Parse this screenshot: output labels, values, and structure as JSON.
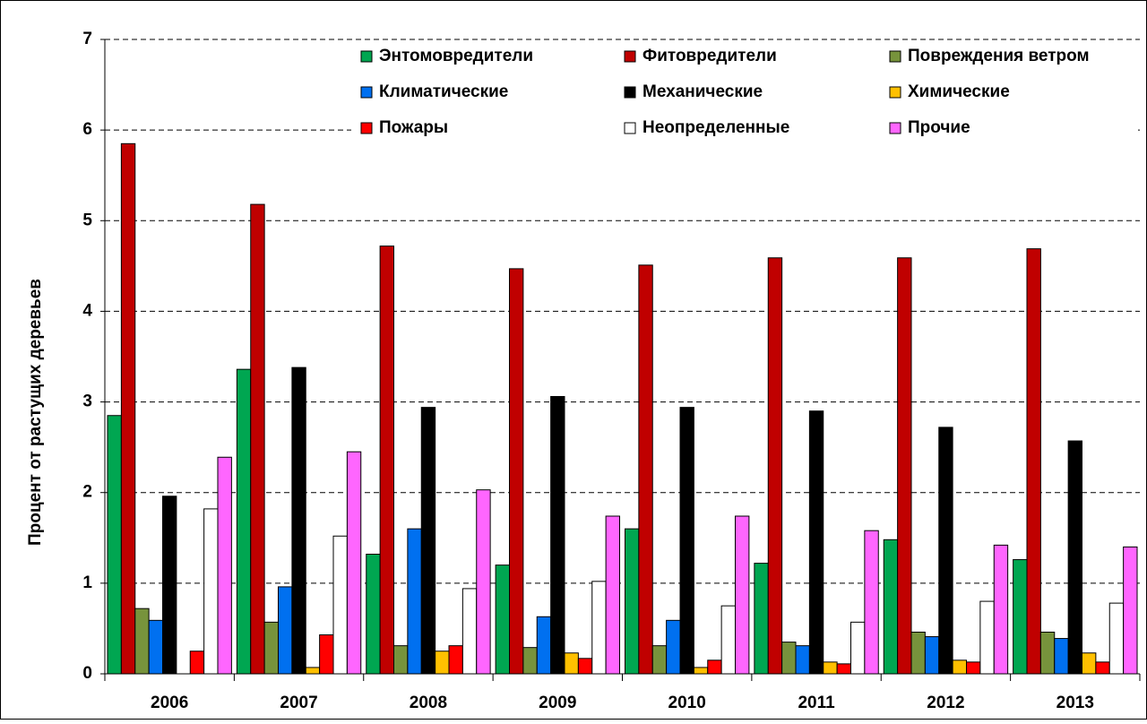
{
  "chart_data": {
    "type": "bar",
    "y_label": "Процент от растущих деревьев",
    "categories": [
      "2006",
      "2007",
      "2008",
      "2009",
      "2010",
      "2011",
      "2012",
      "2013"
    ],
    "series": [
      {
        "name": "Энтомовредители",
        "color": "#00a651",
        "values": [
          2.85,
          3.36,
          1.32,
          1.2,
          1.6,
          1.22,
          1.48,
          1.26
        ]
      },
      {
        "name": "Фитовредители",
        "color": "#c00000",
        "values": [
          5.85,
          5.18,
          4.72,
          4.47,
          4.51,
          4.59,
          4.59,
          4.69
        ]
      },
      {
        "name": "Повреждения ветром",
        "color": "#77933c",
        "values": [
          0.72,
          0.57,
          0.31,
          0.29,
          0.31,
          0.35,
          0.46,
          0.46
        ]
      },
      {
        "name": "Климатические",
        "color": "#0070f0",
        "values": [
          0.59,
          0.96,
          1.6,
          0.63,
          0.59,
          0.31,
          0.41,
          0.39
        ]
      },
      {
        "name": "Механические",
        "color": "#000000",
        "values": [
          1.96,
          3.38,
          2.94,
          3.06,
          2.94,
          2.9,
          2.72,
          2.57
        ]
      },
      {
        "name": "Химические",
        "color": "#ffc000",
        "values": [
          0,
          0.07,
          0.25,
          0.23,
          0.07,
          0.13,
          0.15,
          0.23
        ]
      },
      {
        "name": "Пожары",
        "color": "#ff0000",
        "values": [
          0.25,
          0.43,
          0.31,
          0.17,
          0.15,
          0.11,
          0.13,
          0.13
        ]
      },
      {
        "name": "Неопределенные",
        "color": "#ffffff",
        "values": [
          1.82,
          1.52,
          0.94,
          1.02,
          0.75,
          0.57,
          0.8,
          0.78
        ]
      },
      {
        "name": "Прочие",
        "color": "#ff66ff",
        "values": [
          2.39,
          2.45,
          2.03,
          1.74,
          1.74,
          1.58,
          1.42,
          1.4
        ]
      }
    ],
    "ylim": [
      0,
      7
    ],
    "yticks": [
      0,
      1,
      2,
      3,
      4,
      5,
      6,
      7
    ],
    "grid": true
  }
}
